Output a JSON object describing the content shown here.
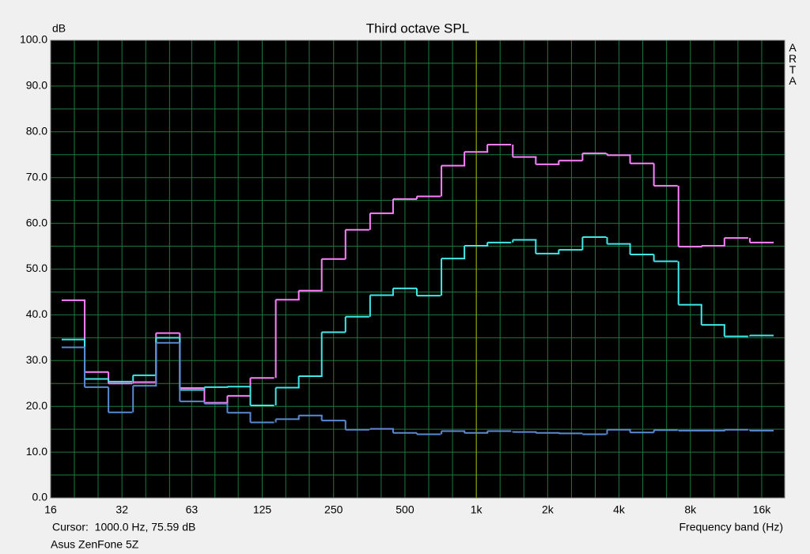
{
  "chart_data": {
    "type": "step",
    "title": "Third octave SPL",
    "y_label": "dB",
    "x_label": "Frequency band (Hz)",
    "watermark": "ARTA",
    "footer": "Asus ZenFone 5Z",
    "cursor": {
      "label": "Cursor:  1000.0 Hz, 75.59 dB",
      "x": 1000
    },
    "x_scale": "log",
    "grid": true,
    "x": [
      20,
      25,
      31.5,
      40,
      50,
      63,
      80,
      100,
      125,
      160,
      200,
      250,
      315,
      400,
      500,
      630,
      800,
      1000,
      1250,
      1600,
      2000,
      2500,
      3150,
      4000,
      5000,
      6300,
      8000,
      10000,
      12500,
      16000
    ],
    "series": [
      {
        "color": "#ff80ff",
        "values": [
          43.2,
          27.5,
          25.0,
          25.3,
          36.0,
          24.0,
          20.8,
          22.3,
          26.2,
          43.3,
          45.3,
          52.2,
          58.6,
          62.2,
          65.3,
          65.9,
          72.6,
          75.6,
          77.2,
          74.5,
          72.9,
          73.7,
          75.3,
          74.9,
          73.1,
          68.2,
          54.9,
          55.1,
          56.8,
          55.8
        ]
      },
      {
        "color": "#40e8e8",
        "values": [
          34.6,
          26.0,
          25.4,
          26.8,
          35.0,
          23.6,
          24.2,
          24.3,
          20.2,
          24.1,
          26.6,
          36.2,
          39.6,
          44.3,
          45.8,
          44.2,
          52.3,
          55.1,
          55.8,
          56.4,
          53.4,
          54.2,
          57.0,
          55.5,
          53.2,
          51.7,
          42.2,
          37.8,
          35.3,
          35.5
        ]
      },
      {
        "color": "#5a8ad0",
        "values": [
          32.9,
          24.2,
          18.7,
          24.5,
          33.9,
          21.1,
          20.6,
          18.6,
          16.5,
          17.2,
          18.0,
          16.9,
          14.9,
          15.1,
          14.2,
          13.9,
          14.6,
          14.2,
          14.6,
          14.4,
          14.2,
          14.1,
          13.9,
          14.9,
          14.3,
          14.8,
          14.7,
          14.7,
          14.9,
          14.7
        ]
      }
    ],
    "xlim": [
      16,
      20000
    ],
    "xticks": [
      16,
      32,
      63,
      125,
      250,
      500,
      {
        "value": 1000,
        "label": "1k"
      },
      {
        "value": 2000,
        "label": "2k"
      },
      {
        "value": 4000,
        "label": "4k"
      },
      {
        "value": 8000,
        "label": "8k"
      },
      {
        "value": 16000,
        "label": "16k"
      }
    ],
    "ylim": [
      0,
      100
    ],
    "yticks": [
      {
        "value": 0,
        "label": "0.0"
      },
      {
        "value": 10,
        "label": "10.0"
      },
      {
        "value": 20,
        "label": "20.0"
      },
      {
        "value": 30,
        "label": "30.0"
      },
      {
        "value": 40,
        "label": "40.0"
      },
      {
        "value": 50,
        "label": "50.0"
      },
      {
        "value": 60,
        "label": "60.0"
      },
      {
        "value": 70,
        "label": "70.0"
      },
      {
        "value": 80,
        "label": "80.0"
      },
      {
        "value": 90,
        "label": "90.0"
      },
      {
        "value": 100,
        "label": "100.0"
      }
    ]
  }
}
